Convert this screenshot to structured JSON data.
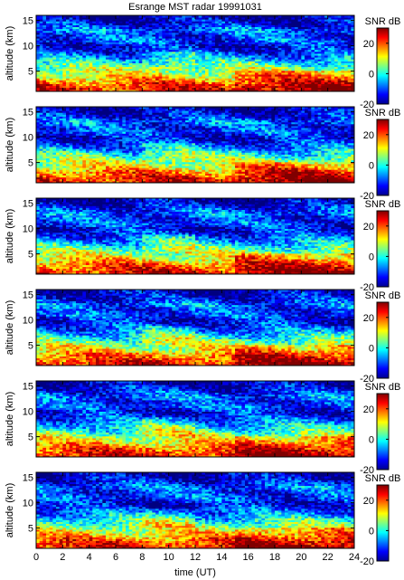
{
  "chart_data": {
    "type": "heatmap",
    "title": "Esrange MST radar 19991031",
    "xlabel": "time (UT)",
    "ylabel": "altitude (km)",
    "colorbar_label": "SNR dB",
    "x_ticks": [
      0,
      2,
      4,
      6,
      8,
      10,
      12,
      14,
      16,
      18,
      20,
      22,
      24
    ],
    "y_ticks": [
      5,
      10,
      15
    ],
    "colorbar_ticks": [
      -20,
      0,
      20
    ],
    "xlim": [
      0,
      24
    ],
    "ylim": [
      1,
      16
    ],
    "zlim": [
      -20,
      30
    ],
    "colormap": "jet",
    "panel_count": 6,
    "data_description_note": "",
    "profile": {
      "altitudes_km": [
        1,
        2,
        3,
        4,
        5,
        6,
        7,
        8,
        9,
        10,
        11,
        12,
        13,
        14,
        15,
        16
      ],
      "typical_snr_db": [
        25,
        22,
        18,
        12,
        8,
        3,
        -2,
        -8,
        -12,
        -15,
        -10,
        -12,
        -8,
        -13,
        -16,
        -18
      ]
    }
  }
}
